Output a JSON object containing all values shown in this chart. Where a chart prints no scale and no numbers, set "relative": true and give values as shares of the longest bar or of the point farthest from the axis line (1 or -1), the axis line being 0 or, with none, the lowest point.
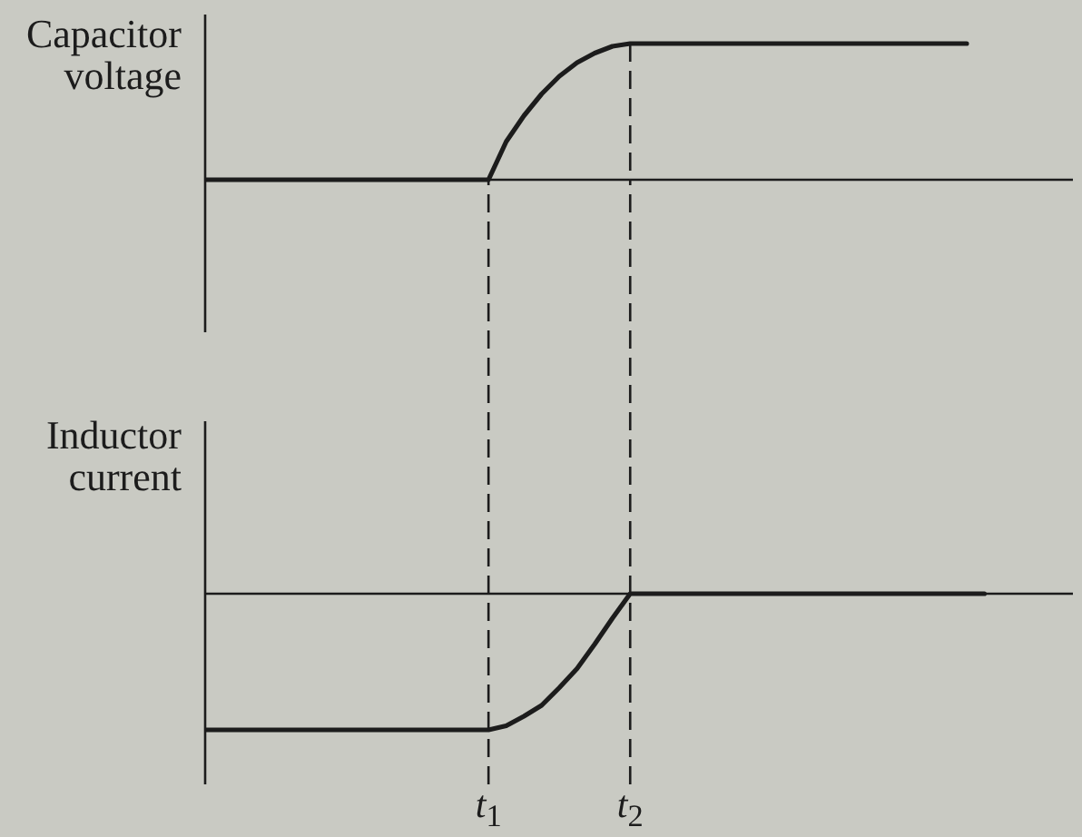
{
  "chart_data": [
    {
      "type": "line",
      "ylabel": "Capacitor voltage",
      "relative": true,
      "tick_labels": false,
      "marker": "none",
      "line_style": "solid",
      "categories": [
        null,
        null,
        null,
        null,
        null,
        null,
        null,
        null,
        null,
        null,
        null,
        null,
        null,
        null,
        null,
        null,
        "t$_{1}$",
        null,
        null,
        null,
        null,
        null,
        null,
        null,
        "t$_{2}$",
        null,
        null,
        null,
        null,
        null,
        null,
        null,
        null,
        null,
        null,
        null,
        null,
        null,
        null,
        null,
        null,
        null,
        null,
        null,
        null,
        null,
        null,
        null,
        null,
        null
      ],
      "series": [
        {
          "color": "#1c1c1c",
          "values": [
            0,
            0,
            0,
            0,
            0,
            0,
            0,
            0,
            0,
            0,
            0,
            0,
            0,
            0,
            0,
            0,
            0,
            0.28,
            0.47,
            0.63,
            0.76,
            0.86,
            0.93,
            0.98,
            1,
            1,
            1,
            1,
            1,
            1,
            1,
            1,
            1,
            1,
            1,
            1,
            1,
            1,
            1,
            1,
            1,
            1,
            1,
            1,
            null,
            null,
            null,
            null,
            null,
            null
          ]
        }
      ],
      "ref_lines": [
        {
          "axis": "x",
          "value": "t$_{2}$",
          "line_style": "dashed",
          "color": "#1c1c1c"
        }
      ]
    },
    {
      "type": "line",
      "ylabel": "Inductor current",
      "relative": true,
      "tick_labels": "x",
      "marker": "none",
      "line_style": "solid",
      "categories": [
        null,
        null,
        null,
        null,
        null,
        null,
        null,
        null,
        null,
        null,
        null,
        null,
        null,
        null,
        null,
        null,
        "t$_{1}$",
        null,
        null,
        null,
        null,
        null,
        null,
        null,
        "t$_{2}$",
        null,
        null,
        null,
        null,
        null,
        null,
        null,
        null,
        null,
        null,
        null,
        null,
        null,
        null,
        null,
        null,
        null,
        null,
        null,
        null,
        null,
        null,
        null,
        null,
        null
      ],
      "series": [
        {
          "color": "#1c1c1c",
          "values": [
            -1,
            -1,
            -1,
            -1,
            -1,
            -1,
            -1,
            -1,
            -1,
            -1,
            -1,
            -1,
            -1,
            -1,
            -1,
            -1,
            -1,
            -0.97,
            -0.9,
            -0.82,
            -0.69,
            -0.55,
            -0.37,
            -0.18,
            0,
            0,
            0,
            0,
            0,
            0,
            0,
            0,
            0,
            0,
            0,
            0,
            0,
            0,
            0,
            0,
            0,
            0,
            0,
            0,
            0,
            null,
            null,
            null,
            null,
            null
          ]
        }
      ],
      "ref_lines": [
        {
          "axis": "x",
          "value": "t$_{1}$",
          "line_style": "dashed",
          "color": "#1c1c1c"
        },
        {
          "axis": "x",
          "value": "t$_{2}$",
          "line_style": "dashed",
          "color": "#1c1c1c"
        }
      ]
    }
  ]
}
